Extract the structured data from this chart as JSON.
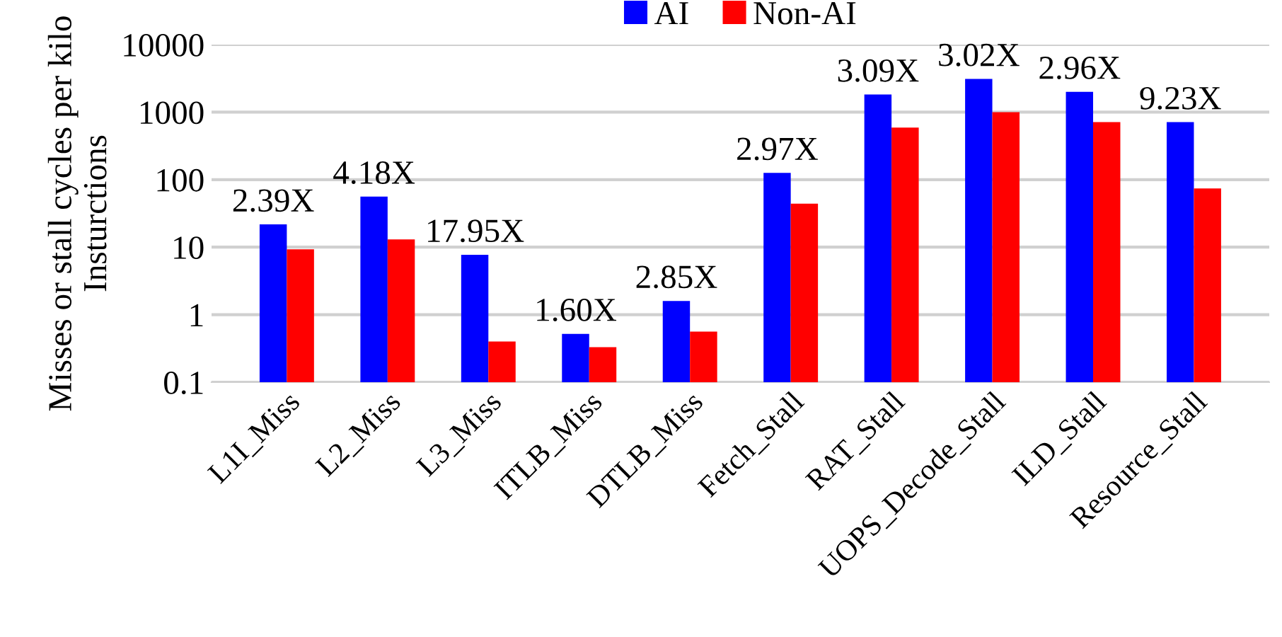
{
  "chart_data": {
    "type": "bar",
    "ylabel": "Misses or stall cycles per kilo\nInsturctions",
    "categories": [
      "L1I_Miss",
      "L2_Miss",
      "L3_Miss",
      "ITLB_Miss",
      "DTLB_Miss",
      "Fetch_Stall",
      "RAT_Stall",
      "UOPS_Decode_Stall",
      "ILD_Stall",
      "Resource_Stall"
    ],
    "series": [
      {
        "name": "AI",
        "color": "#0000ff",
        "values": [
          21.7,
          56,
          7.7,
          0.52,
          1.6,
          126,
          1820,
          3100,
          2000,
          710
        ]
      },
      {
        "name": "Non-AI",
        "color": "#ff0000",
        "values": [
          9.3,
          13,
          0.4,
          0.33,
          0.56,
          44,
          590,
          1000,
          710,
          74
        ]
      }
    ],
    "log": true,
    "ylim": [
      0.1,
      10000
    ],
    "yticks": [
      0.1,
      1,
      10,
      100,
      1000,
      10000
    ],
    "grid": "y",
    "legend": "top",
    "annotations": [
      {
        "text": "2.39X",
        "x": "L1I_Miss",
        "y": 21.7
      },
      {
        "text": "4.18X",
        "x": "L2_Miss",
        "y": 56
      },
      {
        "text": "17.95X",
        "x": "L3_Miss",
        "y": 7.7
      },
      {
        "text": "1.60X",
        "x": "ITLB_Miss",
        "y": 0.52
      },
      {
        "text": "2.85X",
        "x": "DTLB_Miss",
        "y": 1.6
      },
      {
        "text": "2.97X",
        "x": "Fetch_Stall",
        "y": 126
      },
      {
        "text": "3.09X",
        "x": "RAT_Stall",
        "y": 1820
      },
      {
        "text": "3.02X",
        "x": "UOPS_Decode_Stall",
        "y": 3100
      },
      {
        "text": "2.96X",
        "x": "ILD_Stall",
        "y": 2000
      },
      {
        "text": "9.23X",
        "x": "Resource_Stall",
        "y": 710
      }
    ]
  }
}
